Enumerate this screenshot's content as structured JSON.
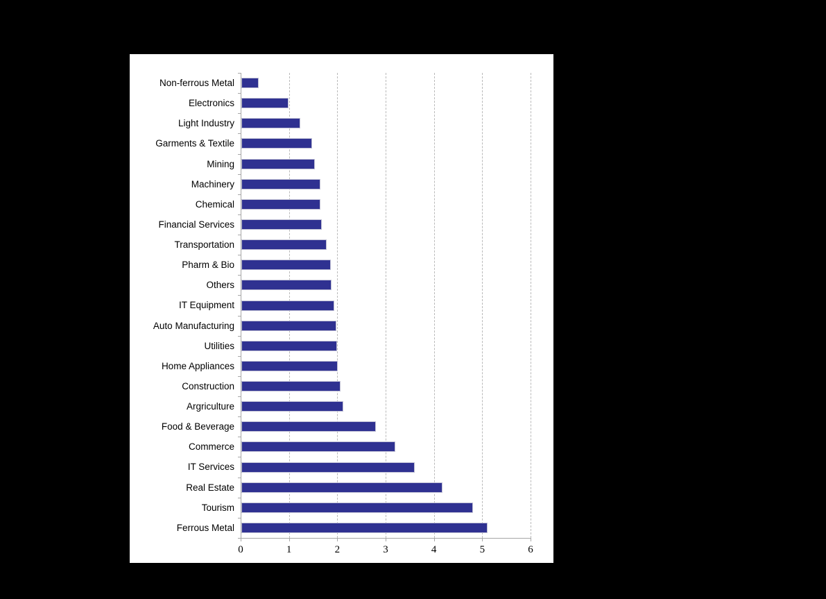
{
  "chart_data": {
    "type": "bar",
    "orientation": "horizontal",
    "categories": [
      "Non-ferrous Metal",
      "Electronics",
      "Light Industry",
      "Garments & Textile",
      "Mining",
      "Machinery",
      "Chemical",
      "Financial Services",
      "Transportation",
      "Pharm & Bio",
      "Others",
      "IT Equipment",
      "Auto Manufacturing",
      "Utilities",
      "Home Appliances",
      "Construction",
      "Argriculture",
      "Food & Beverage",
      "Commerce",
      "IT Services",
      "Real Estate",
      "Tourism",
      "Ferrous Metal"
    ],
    "values": [
      0.36,
      0.98,
      1.22,
      1.46,
      1.52,
      1.63,
      1.64,
      1.67,
      1.76,
      1.85,
      1.87,
      1.93,
      1.96,
      1.98,
      1.99,
      2.05,
      2.11,
      2.79,
      3.18,
      3.59,
      4.16,
      4.8,
      5.1
    ],
    "x_ticks": [
      "0",
      "1",
      "2",
      "3",
      "4",
      "5",
      "6"
    ],
    "xlim": [
      0,
      6
    ],
    "xlabel": "",
    "ylabel": "",
    "grid": "vertical-dashed",
    "legend": "none",
    "colors": {
      "bar_fill": "#2f3191",
      "bar_border": "#bfbfd4",
      "axis_line": "#a6a6a6",
      "gridline": "#b9b9b9",
      "panel_background": "#ffffff",
      "page_background": "#000000",
      "text": "#000000"
    }
  }
}
